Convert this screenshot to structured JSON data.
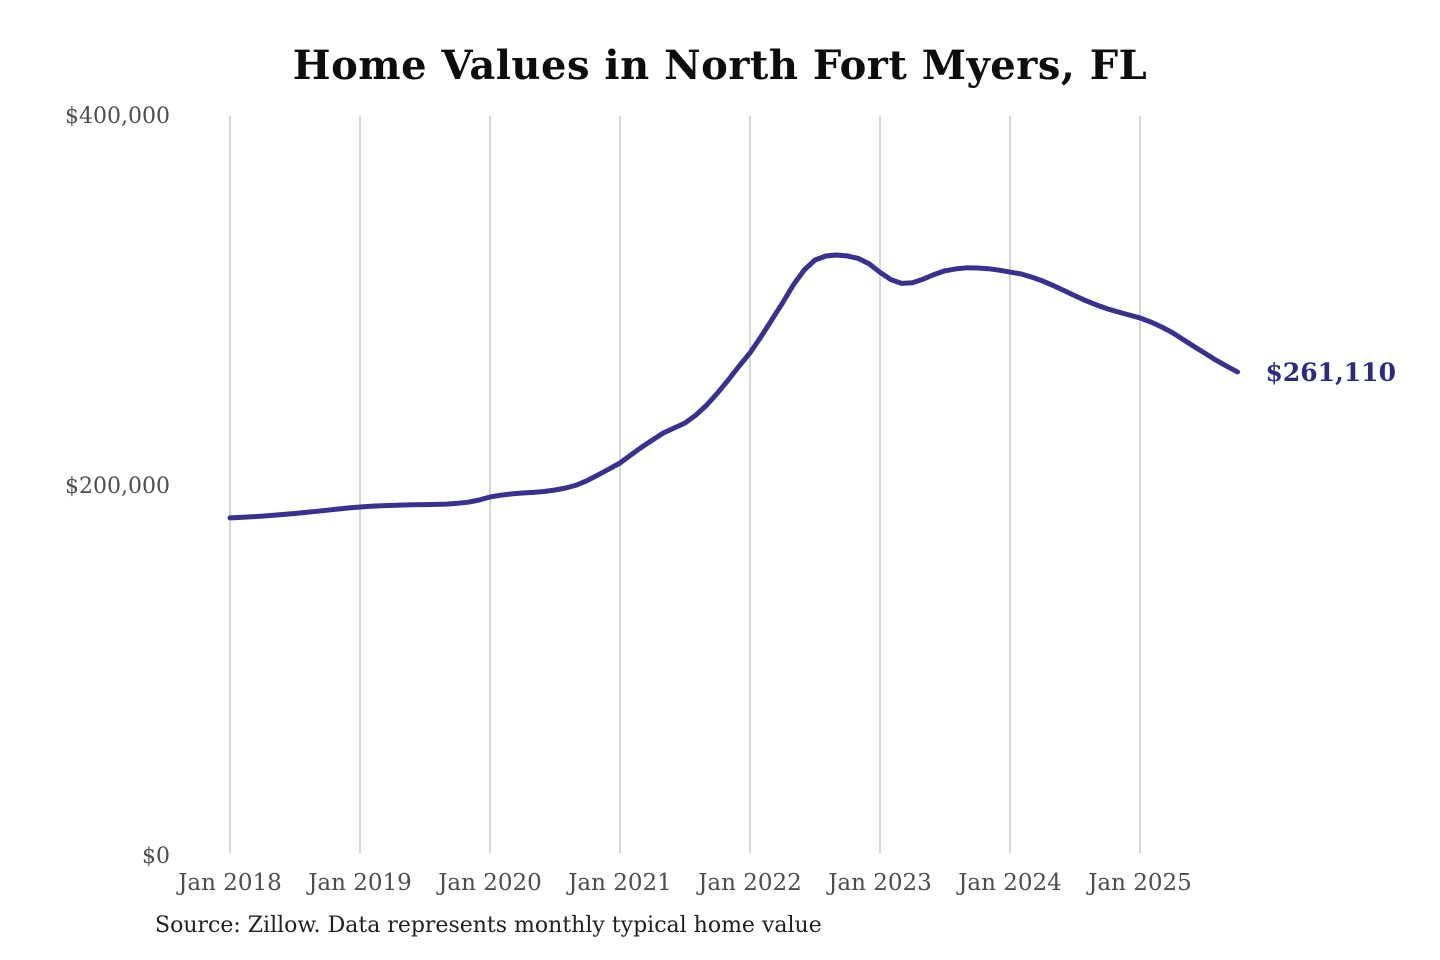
{
  "chart_data": {
    "type": "line",
    "title": "Home Values in North Fort Myers, FL",
    "series_name": "Monthly typical home value",
    "unit": "USD",
    "x_monthly": [
      "2018-01",
      "2018-02",
      "2018-03",
      "2018-04",
      "2018-05",
      "2018-06",
      "2018-07",
      "2018-08",
      "2018-09",
      "2018-10",
      "2018-11",
      "2018-12",
      "2019-01",
      "2019-02",
      "2019-03",
      "2019-04",
      "2019-05",
      "2019-06",
      "2019-07",
      "2019-08",
      "2019-09",
      "2019-10",
      "2019-11",
      "2019-12",
      "2020-01",
      "2020-02",
      "2020-03",
      "2020-04",
      "2020-05",
      "2020-06",
      "2020-07",
      "2020-08",
      "2020-09",
      "2020-10",
      "2020-11",
      "2020-12",
      "2021-01",
      "2021-02",
      "2021-03",
      "2021-04",
      "2021-05",
      "2021-06",
      "2021-07",
      "2021-08",
      "2021-09",
      "2021-10",
      "2021-11",
      "2021-12",
      "2022-01",
      "2022-02",
      "2022-03",
      "2022-04",
      "2022-05",
      "2022-06",
      "2022-07",
      "2022-08",
      "2022-09",
      "2022-10",
      "2022-11",
      "2022-12",
      "2023-01",
      "2023-02",
      "2023-03",
      "2023-04",
      "2023-05",
      "2023-06",
      "2023-07",
      "2023-08",
      "2023-09",
      "2023-10",
      "2023-11",
      "2023-12",
      "2024-01",
      "2024-02",
      "2024-03",
      "2024-04",
      "2024-05",
      "2024-06",
      "2024-07",
      "2024-08",
      "2024-09",
      "2024-10",
      "2024-11",
      "2024-12",
      "2025-01",
      "2025-02",
      "2025-03",
      "2025-04",
      "2025-05",
      "2025-06",
      "2025-07",
      "2025-08",
      "2025-09",
      "2025-10"
    ],
    "values": [
      182200,
      182500,
      182800,
      183200,
      183600,
      184100,
      184600,
      185200,
      185800,
      186400,
      187000,
      187600,
      188100,
      188500,
      188800,
      189000,
      189200,
      189300,
      189400,
      189500,
      189700,
      190100,
      190700,
      191900,
      193500,
      194500,
      195200,
      195700,
      196000,
      196500,
      197300,
      198400,
      200000,
      202500,
      205500,
      208700,
      211900,
      216200,
      220500,
      224300,
      228100,
      230800,
      233500,
      237800,
      243200,
      249700,
      256800,
      264300,
      271400,
      280000,
      289200,
      298400,
      308100,
      316200,
      321600,
      323800,
      324300,
      323800,
      322500,
      319500,
      315000,
      311000,
      309000,
      309300,
      311300,
      313800,
      315800,
      316800,
      317400,
      317300,
      316900,
      316100,
      315100,
      314100,
      312400,
      310300,
      307800,
      305100,
      302300,
      299600,
      297300,
      295200,
      293500,
      291900,
      290300,
      288100,
      285400,
      282300,
      278600,
      274800,
      271200,
      267500,
      264200,
      261110
    ],
    "latest_value": 261110,
    "latest_label": "$261,110",
    "ylim": [
      0,
      400000
    ],
    "yticks": [
      {
        "value": 0,
        "label": "$0"
      },
      {
        "value": 200000,
        "label": "$200,000"
      },
      {
        "value": 400000,
        "label": "$400,000"
      }
    ],
    "xticks": [
      "Jan 2018",
      "Jan 2019",
      "Jan 2020",
      "Jan 2021",
      "Jan 2022",
      "Jan 2023",
      "Jan 2024",
      "Jan 2025"
    ],
    "grid": "vertical-yearly",
    "legend": "none",
    "colors": {
      "line": "#3a318e",
      "annotation": "#2e2a80",
      "gridline": "#c9c9c9",
      "tick_label": "#4d4d4d",
      "title": "#0d0d0d",
      "source": "#1f1f1f",
      "background": "#ffffff"
    },
    "source_note": "Source: Zillow. Data represents monthly typical home value"
  }
}
